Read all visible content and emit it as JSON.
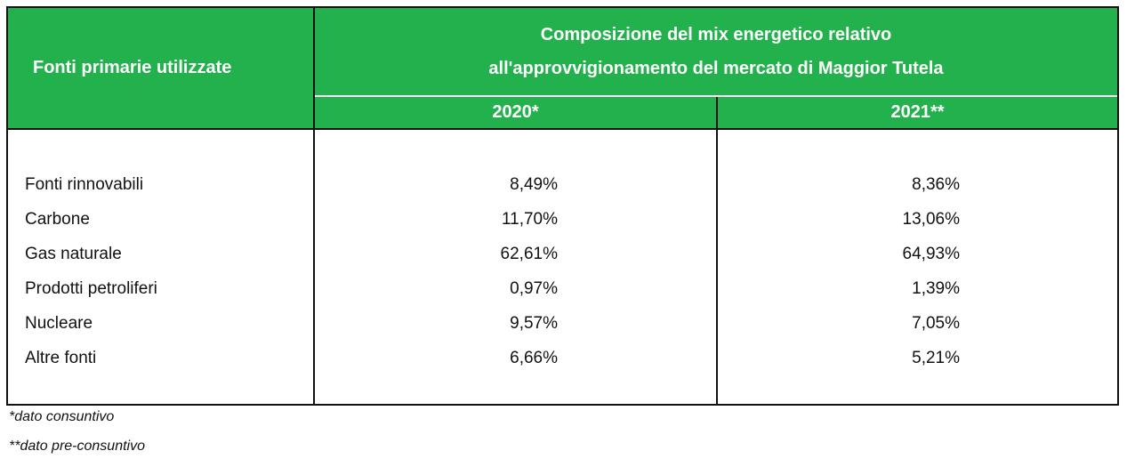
{
  "table": {
    "header": {
      "first_column": "Fonti primarie utilizzate",
      "title_lines": [
        "Composizione del mix energetico relativo",
        "all'approvvigionamento del mercato di Maggior Tutela"
      ],
      "columns": [
        "2020*",
        "2021**"
      ]
    },
    "rows": [
      [
        "Fonti rinnovabili",
        "8,49%",
        "8,36%"
      ],
      [
        "Carbone",
        "11,70%",
        "13,06%"
      ],
      [
        "Gas naturale",
        "62,61%",
        "64,93%"
      ],
      [
        "Prodotti petroliferi",
        "0,97%",
        "1,39%"
      ],
      [
        "Nucleare",
        "9,57%",
        "7,05%"
      ],
      [
        "Altre fonti",
        "6,66%",
        "5,21%"
      ]
    ]
  },
  "footnotes": [
    "*dato consuntivo",
    "**dato pre-consuntivo"
  ]
}
